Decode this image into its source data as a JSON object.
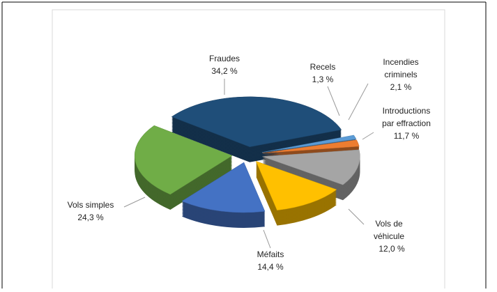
{
  "chart_data": {
    "type": "pie3d",
    "categories": [
      "Recels",
      "Incendies\ncriminels",
      "Introductions\npar effraction",
      "Vols de\nvéhicule",
      "Méfaits",
      "Vols simples",
      "Fraudes"
    ],
    "values": [
      1.3,
      2.1,
      11.7,
      12.0,
      14.4,
      24.3,
      34.2
    ],
    "value_labels": [
      "1,3 %",
      "2,1 %",
      "11,7 %",
      "12,0 %",
      "14,4 %",
      "24,3 %",
      "34,2 %"
    ],
    "colors": [
      "#5b9bd5",
      "#ed7d31",
      "#a5a5a5",
      "#ffc000",
      "#4472c4",
      "#70ad47",
      "#1f4e79"
    ]
  }
}
